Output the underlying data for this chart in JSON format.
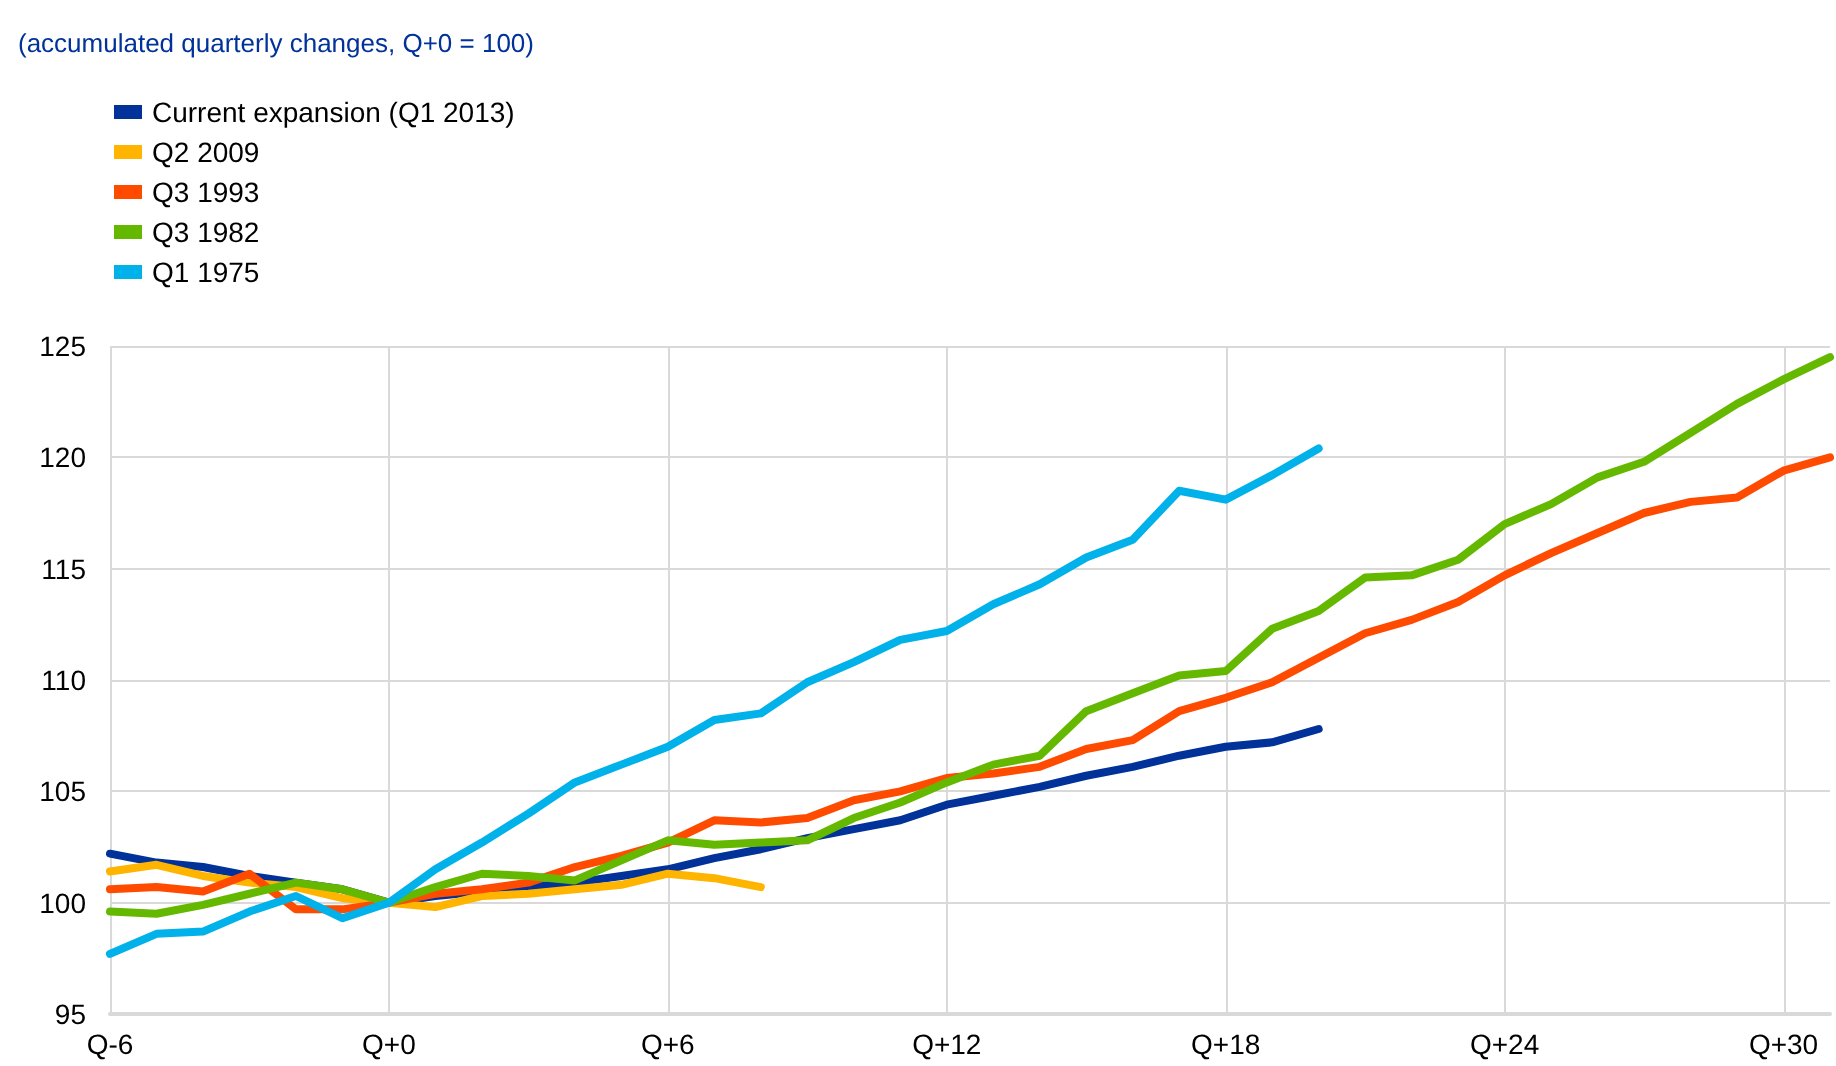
{
  "chart_data": {
    "type": "line",
    "subtitle": "(accumulated quarterly changes, Q+0 = 100)",
    "categories": [
      "Q-6",
      null,
      null,
      null,
      null,
      null,
      "Q+0",
      null,
      null,
      null,
      null,
      null,
      "Q+6",
      null,
      null,
      null,
      null,
      null,
      "Q+12",
      null,
      null,
      null,
      null,
      null,
      "Q+18",
      null,
      null,
      null,
      null,
      null,
      "Q+24",
      null,
      null,
      null,
      null,
      null,
      "Q+30",
      null
    ],
    "ylim": [
      95,
      125
    ],
    "yticks": [
      95,
      100,
      105,
      110,
      115,
      120,
      125
    ],
    "grid": true,
    "legend": "top left",
    "marker": "none",
    "line_style": "solid",
    "series": [
      {
        "name": "Current expansion (Q1 2013)",
        "color": "#003299",
        "values": [
          102.2,
          101.8,
          101.6,
          101.2,
          100.9,
          100.6,
          100,
          100.3,
          100.5,
          100.7,
          100.9,
          101.2,
          101.5,
          102.0,
          102.4,
          102.9,
          103.3,
          103.7,
          104.4,
          104.8,
          105.2,
          105.7,
          106.1,
          106.6,
          107.0,
          107.2,
          107.8,
          null,
          null,
          null,
          null,
          null,
          null,
          null,
          null,
          null,
          null,
          null
        ]
      },
      {
        "name": "Q2 2009",
        "color": "#ffb400",
        "values": [
          101.4,
          101.7,
          101.2,
          100.9,
          100.7,
          100.2,
          100,
          99.8,
          100.3,
          100.4,
          100.6,
          100.8,
          101.3,
          101.1,
          100.7,
          null,
          null,
          null,
          null,
          null,
          null,
          null,
          null,
          null,
          null,
          null,
          null,
          null,
          null,
          null,
          null,
          null,
          null,
          null,
          null,
          null,
          null,
          null
        ]
      },
      {
        "name": "Q3 1993",
        "color": "#ff4b00",
        "values": [
          100.6,
          100.7,
          100.5,
          101.3,
          99.7,
          99.7,
          100,
          100.4,
          100.6,
          100.9,
          101.6,
          102.1,
          102.7,
          103.7,
          103.6,
          103.8,
          104.6,
          105.0,
          105.6,
          105.8,
          106.1,
          106.9,
          107.3,
          108.6,
          109.2,
          109.9,
          111.0,
          112.1,
          112.7,
          113.5,
          114.7,
          115.7,
          116.6,
          117.5,
          118.0,
          118.2,
          119.4,
          120.0
        ]
      },
      {
        "name": "Q3 1982",
        "color": "#65b800",
        "values": [
          99.6,
          99.5,
          99.9,
          100.4,
          100.9,
          100.6,
          100,
          100.7,
          101.3,
          101.2,
          101.0,
          101.9,
          102.8,
          102.6,
          102.7,
          102.8,
          103.8,
          104.5,
          105.4,
          106.2,
          106.6,
          108.6,
          109.4,
          110.2,
          110.4,
          112.3,
          113.1,
          114.6,
          114.7,
          115.4,
          117.0,
          117.9,
          119.1,
          119.8,
          121.1,
          122.4,
          123.5,
          124.5
        ]
      },
      {
        "name": "Q1 1975",
        "color": "#00b1ea",
        "values": [
          97.7,
          98.6,
          98.7,
          99.6,
          100.3,
          99.3,
          100,
          101.5,
          102.7,
          104.0,
          105.4,
          106.2,
          107.0,
          108.2,
          108.5,
          109.9,
          110.8,
          111.8,
          112.2,
          113.4,
          114.3,
          115.5,
          116.3,
          118.5,
          118.1,
          119.2,
          120.4,
          null,
          null,
          null,
          null,
          null,
          null,
          null,
          null,
          null,
          null,
          null
        ]
      }
    ]
  }
}
